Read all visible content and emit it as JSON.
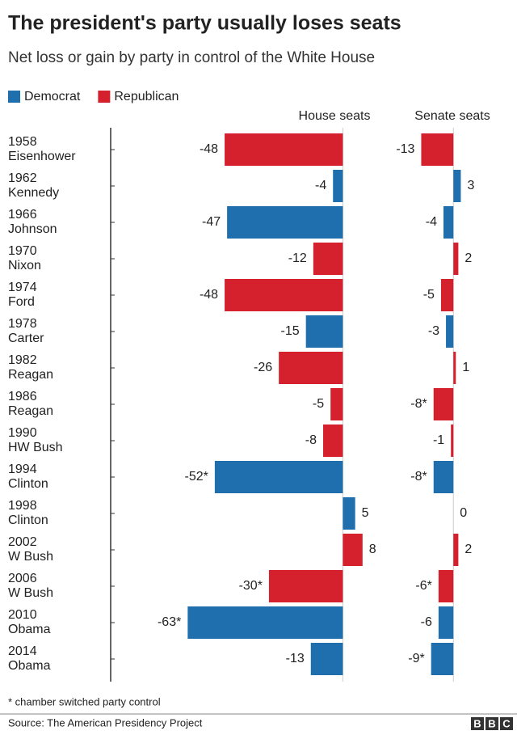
{
  "chart_data": {
    "type": "bar",
    "title": "The president's party usually loses seats",
    "subtitle": "Net loss or gain by party in control of the White House",
    "legend": [
      {
        "name": "Democrat",
        "color": "#1f6ead"
      },
      {
        "name": "Republican",
        "color": "#d5202e"
      }
    ],
    "categories": [
      [
        "1958",
        "Eisenhower"
      ],
      [
        "1962",
        "Kennedy"
      ],
      [
        "1966",
        "Johnson"
      ],
      [
        "1970",
        "Nixon"
      ],
      [
        "1974",
        "Ford"
      ],
      [
        "1978",
        "Carter"
      ],
      [
        "1982",
        "Reagan"
      ],
      [
        "1986",
        "Reagan"
      ],
      [
        "1990",
        "HW Bush"
      ],
      [
        "1994",
        "Clinton"
      ],
      [
        "1998",
        "Clinton"
      ],
      [
        "2002",
        "W Bush"
      ],
      [
        "2006",
        "W Bush"
      ],
      [
        "2010",
        "Obama"
      ],
      [
        "2014",
        "Obama"
      ]
    ],
    "bar_colors": [
      "#d5202e",
      "#1f6ead",
      "#1f6ead",
      "#d5202e",
      "#d5202e",
      "#1f6ead",
      "#d5202e",
      "#d5202e",
      "#d5202e",
      "#1f6ead",
      "#1f6ead",
      "#d5202e",
      "#d5202e",
      "#1f6ead",
      "#1f6ead"
    ],
    "series": [
      {
        "name": "House seats",
        "xlim": [
          -70,
          12
        ],
        "values": [
          -48,
          -4,
          -47,
          -12,
          -48,
          -15,
          -26,
          -5,
          -8,
          -52,
          5,
          8,
          -30,
          -63,
          -13
        ],
        "value_labels": [
          "-48",
          "-4",
          "-47",
          "-12",
          "-48",
          "-15",
          "-26",
          "-5",
          "-8",
          "-52*",
          "5",
          "8",
          "-30*",
          "-63*",
          "-13"
        ]
      },
      {
        "name": "Senate seats",
        "xlim": [
          -20,
          12
        ],
        "values": [
          -13,
          3,
          -4,
          2,
          -5,
          -3,
          1,
          -8,
          -1,
          -8,
          0,
          2,
          -6,
          -6,
          -9
        ],
        "value_labels": [
          "-13",
          "3",
          "-4",
          "2",
          "-5",
          "-3",
          "1",
          "-8*",
          "-1",
          "-8*",
          "0",
          "2",
          "-6*",
          "-6",
          "-9*"
        ]
      }
    ],
    "footnote": "* chamber switched party control",
    "source": "Source: The American Presidency Project",
    "logo": [
      "B",
      "B",
      "C"
    ]
  }
}
